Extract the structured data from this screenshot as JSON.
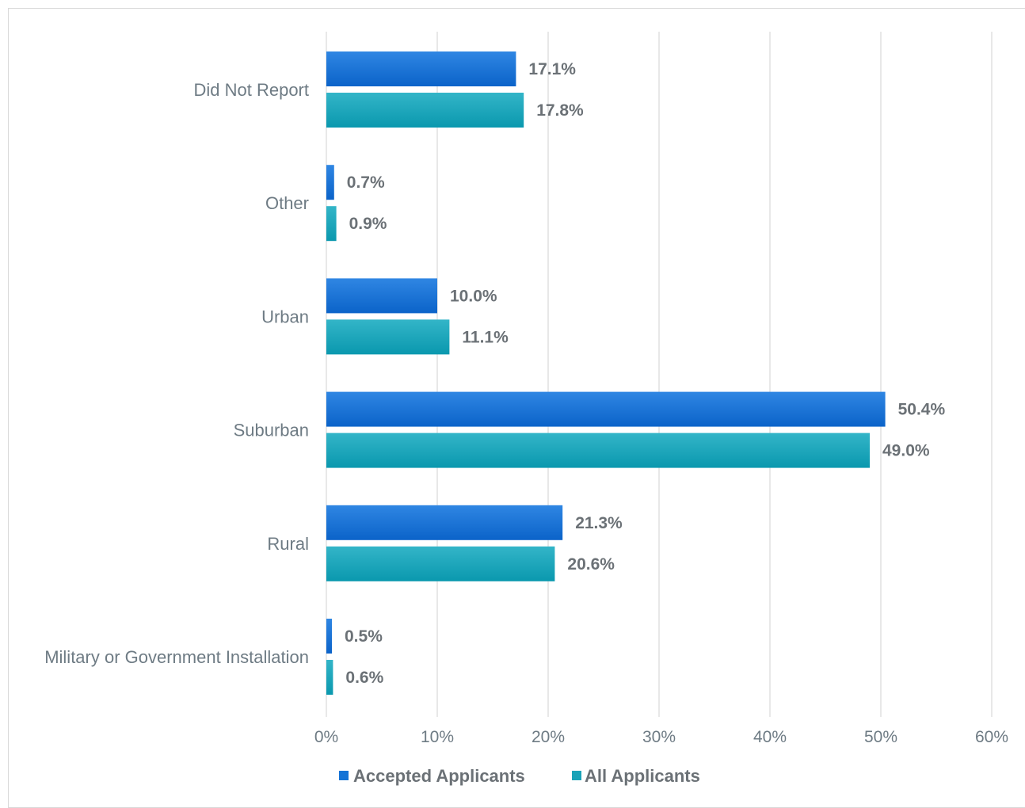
{
  "chart_data": {
    "type": "bar",
    "orientation": "horizontal",
    "categories": [
      "Did Not Report",
      "Other",
      "Urban",
      "Suburban",
      "Rural",
      "Military or Government Installation"
    ],
    "series": [
      {
        "name": "Accepted Applicants",
        "values": [
          17.1,
          0.7,
          10.0,
          50.4,
          21.3,
          0.5
        ],
        "labels": [
          "17.1%",
          "0.7%",
          "10.0%",
          "50.4%",
          "21.3%",
          "0.5%"
        ],
        "color": "#1473d6"
      },
      {
        "name": "All Applicants",
        "values": [
          17.8,
          0.9,
          11.1,
          49.0,
          20.6,
          0.6
        ],
        "labels": [
          "17.8%",
          "0.9%",
          "11.1%",
          "49.0%",
          "20.6%",
          "0.6%"
        ],
        "color": "#1aa3b8"
      }
    ],
    "xlim": [
      0,
      60
    ],
    "xticks": [
      0,
      10,
      20,
      30,
      40,
      50,
      60
    ],
    "xtick_labels": [
      "0%",
      "10%",
      "20%",
      "30%",
      "40%",
      "50%",
      "60%"
    ],
    "grid": "vertical",
    "legend_position": "bottom"
  }
}
